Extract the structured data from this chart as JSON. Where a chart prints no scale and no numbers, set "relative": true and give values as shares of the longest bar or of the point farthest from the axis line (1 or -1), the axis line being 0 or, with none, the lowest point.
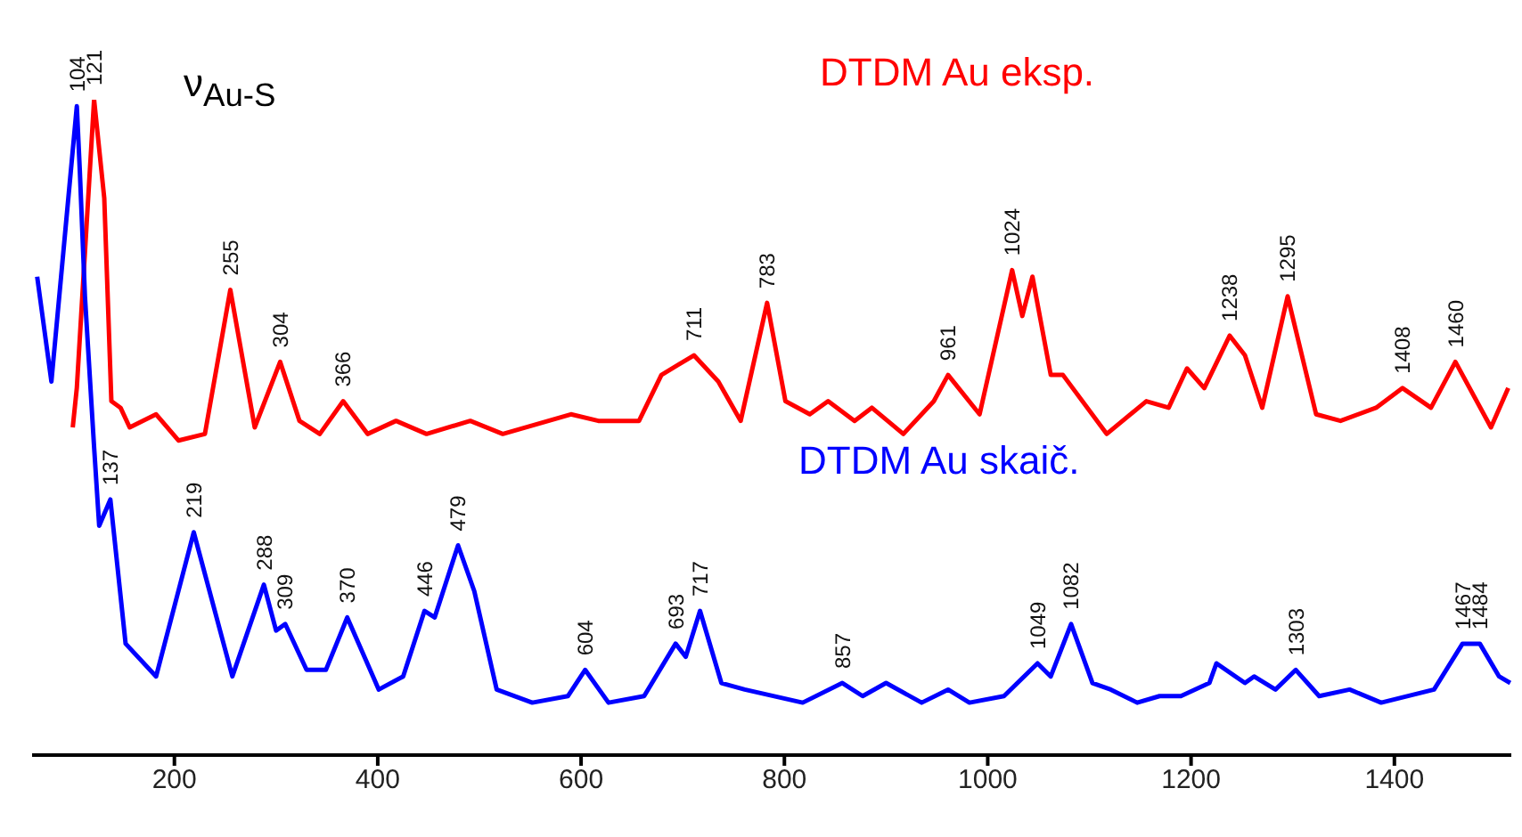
{
  "chart_data": {
    "type": "line",
    "xlim": [
      60,
      1515
    ],
    "xticks": [
      200,
      400,
      600,
      800,
      1000,
      1200,
      1400
    ],
    "relative": true,
    "legend": false,
    "grid": false,
    "marker": "none",
    "line_style": "solid",
    "series": [
      {
        "name": "DTDM Au eksp.",
        "color": "#ff0000",
        "x": [
          100,
          104,
          121,
          131,
          138,
          147,
          156,
          182,
          204,
          230,
          255,
          279,
          304,
          323,
          343,
          366,
          390,
          418,
          448,
          491,
          523,
          590,
          617,
          657,
          679,
          711,
          735,
          757,
          783,
          801,
          825,
          843,
          869,
          886,
          917,
          947,
          961,
          992,
          1024,
          1034,
          1044,
          1062,
          1074,
          1117,
          1156,
          1178,
          1196,
          1213,
          1238,
          1253,
          1270,
          1295,
          1323,
          1347,
          1382,
          1408,
          1436,
          1460,
          1495,
          1512
        ],
        "values": [
          0.5,
          0.56,
          1.0,
          0.85,
          0.54,
          0.53,
          0.5,
          0.52,
          0.48,
          0.49,
          0.71,
          0.5,
          0.6,
          0.51,
          0.49,
          0.54,
          0.49,
          0.51,
          0.49,
          0.51,
          0.49,
          0.52,
          0.51,
          0.51,
          0.58,
          0.61,
          0.57,
          0.51,
          0.69,
          0.54,
          0.52,
          0.54,
          0.51,
          0.53,
          0.49,
          0.54,
          0.58,
          0.52,
          0.74,
          0.67,
          0.73,
          0.58,
          0.58,
          0.49,
          0.54,
          0.53,
          0.59,
          0.56,
          0.64,
          0.61,
          0.53,
          0.7,
          0.52,
          0.51,
          0.53,
          0.56,
          0.53,
          0.6,
          0.5,
          0.56
        ]
      },
      {
        "name": "DTDM Au skaič.",
        "color": "#0000ff",
        "x": [
          65,
          79,
          104,
          107,
          112,
          121,
          126,
          137,
          152,
          182,
          219,
          257,
          288,
          300,
          309,
          330,
          349,
          370,
          401,
          425,
          446,
          456,
          479,
          495,
          517,
          552,
          587,
          604,
          627,
          662,
          693,
          703,
          717,
          738,
          761,
          818,
          857,
          877,
          900,
          935,
          961,
          982,
          1016,
          1049,
          1062,
          1082,
          1103,
          1121,
          1147,
          1169,
          1190,
          1218,
          1225,
          1253,
          1262,
          1283,
          1303,
          1326,
          1356,
          1387,
          1439,
          1467,
          1474,
          1484,
          1503,
          1514
        ],
        "values": [
          0.73,
          0.57,
          0.99,
          0.89,
          0.7,
          0.47,
          0.35,
          0.39,
          0.17,
          0.12,
          0.34,
          0.12,
          0.26,
          0.19,
          0.2,
          0.13,
          0.13,
          0.21,
          0.1,
          0.12,
          0.22,
          0.21,
          0.32,
          0.25,
          0.1,
          0.08,
          0.09,
          0.13,
          0.08,
          0.09,
          0.17,
          0.15,
          0.22,
          0.11,
          0.1,
          0.08,
          0.11,
          0.09,
          0.11,
          0.08,
          0.1,
          0.08,
          0.09,
          0.14,
          0.12,
          0.2,
          0.11,
          0.1,
          0.08,
          0.09,
          0.09,
          0.11,
          0.14,
          0.11,
          0.12,
          0.1,
          0.13,
          0.09,
          0.1,
          0.08,
          0.1,
          0.17,
          0.17,
          0.17,
          0.12,
          0.11
        ]
      }
    ],
    "annotations": [
      "ν$_{Au-S}$",
      {
        "text": "104",
        "x": 104,
        "y": 0.99
      },
      {
        "text": "121",
        "x": 121,
        "y": 1.0
      },
      {
        "text": "255",
        "x": 255,
        "y": 0.71
      },
      {
        "text": "304",
        "x": 304,
        "y": 0.6
      },
      {
        "text": "366",
        "x": 366,
        "y": 0.54
      },
      {
        "text": "711",
        "x": 711,
        "y": 0.61
      },
      {
        "text": "783",
        "x": 783,
        "y": 0.69
      },
      {
        "text": "961",
        "x": 961,
        "y": 0.58
      },
      {
        "text": "1024",
        "x": 1024,
        "y": 0.74
      },
      {
        "text": "1238",
        "x": 1238,
        "y": 0.64
      },
      {
        "text": "1295",
        "x": 1295,
        "y": 0.7
      },
      {
        "text": "1408",
        "x": 1408,
        "y": 0.56
      },
      {
        "text": "1460",
        "x": 1460,
        "y": 0.6
      },
      {
        "text": "137",
        "x": 137,
        "y": 0.39
      },
      {
        "text": "219",
        "x": 219,
        "y": 0.34
      },
      {
        "text": "288",
        "x": 288,
        "y": 0.26
      },
      {
        "text": "309",
        "x": 309,
        "y": 0.2
      },
      {
        "text": "370",
        "x": 370,
        "y": 0.21
      },
      {
        "text": "446",
        "x": 446,
        "y": 0.22
      },
      {
        "text": "479",
        "x": 479,
        "y": 0.32
      },
      {
        "text": "604",
        "x": 604,
        "y": 0.13
      },
      {
        "text": "693",
        "x": 693,
        "y": 0.17
      },
      {
        "text": "717",
        "x": 717,
        "y": 0.22
      },
      {
        "text": "857",
        "x": 857,
        "y": 0.11
      },
      {
        "text": "1049",
        "x": 1049,
        "y": 0.14
      },
      {
        "text": "1082",
        "x": 1082,
        "y": 0.2
      },
      {
        "text": "1303",
        "x": 1303,
        "y": 0.13
      },
      {
        "text": "1467",
        "x": 1467,
        "y": 0.17
      },
      {
        "text": "1484",
        "x": 1484,
        "y": 0.17
      }
    ]
  }
}
